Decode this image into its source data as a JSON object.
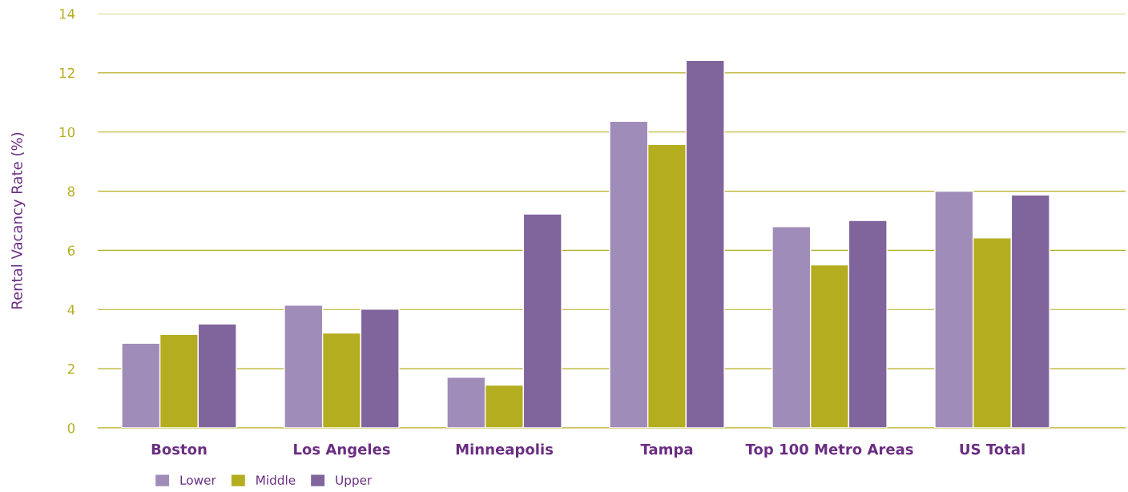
{
  "chart_data": {
    "type": "bar",
    "ylabel": "Rental Vacancy Rate (%)",
    "categories": [
      "Boston",
      "Los Angeles",
      "Minneapolis",
      "Tampa",
      "Top 100 Metro Areas",
      "US Total"
    ],
    "series": [
      {
        "name": "Lower",
        "color": "#a08cb8",
        "values": [
          2.86,
          4.15,
          1.71,
          10.36,
          6.8,
          8.0
        ]
      },
      {
        "name": "Middle",
        "color": "#b5ad20",
        "values": [
          3.16,
          3.21,
          1.45,
          9.58,
          5.51,
          6.42
        ]
      },
      {
        "name": "Upper",
        "color": "#80649c",
        "values": [
          3.51,
          4.01,
          7.23,
          12.42,
          7.01,
          7.87
        ]
      }
    ],
    "ylim": [
      0,
      14
    ],
    "yticks": [
      0,
      2,
      4,
      6,
      8,
      10,
      12,
      14
    ],
    "grid": "y",
    "legend": "bottom left"
  }
}
